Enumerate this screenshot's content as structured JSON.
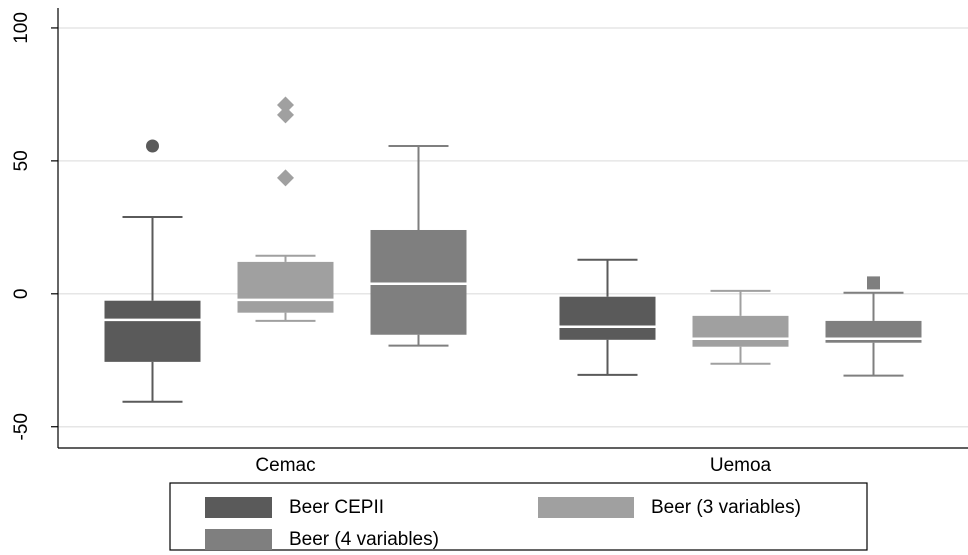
{
  "chart_data": {
    "type": "box",
    "categories": [
      "Cemac",
      "Uemoa"
    ],
    "ylim": [
      -58,
      107.5
    ],
    "yticks": [
      -50,
      0,
      50,
      100
    ],
    "grid": true,
    "series": [
      {
        "name": "Beer CEPII",
        "color": "#5a5a5a",
        "marker": "circle",
        "boxes": [
          {
            "min": -40.6,
            "q1": -25.6,
            "median": -9.8,
            "q3": -2.6,
            "max": 28.9,
            "outliers": [
              55.6
            ]
          },
          {
            "min": -30.5,
            "q1": -17.3,
            "median": -12.4,
            "q3": -1.1,
            "max": 12.8
          }
        ]
      },
      {
        "name": "Beer (3 variables)",
        "color": "#a0a0a0",
        "marker": "diamond",
        "boxes": [
          {
            "min": -10.2,
            "q1": -7.1,
            "median": -2.3,
            "q3": 12,
            "max": 14.3,
            "outliers": [
              71,
              67.3,
              43.6
            ]
          },
          {
            "min": -26.3,
            "q1": -19.9,
            "median": -16.9,
            "q3": -8.3,
            "max": 1.1
          }
        ]
      },
      {
        "name": "Beer (4 variables)",
        "color": "#7f7f7f",
        "marker": "square",
        "boxes": [
          {
            "min": -19.5,
            "q1": -15.4,
            "median": 3.8,
            "q3": 24,
            "max": 55.6
          },
          {
            "min": -30.8,
            "q1": -18.4,
            "median": -16.9,
            "q3": -10.2,
            "max": 0.4,
            "outliers": [
              4.1
            ]
          }
        ]
      }
    ],
    "legend": "bottom"
  }
}
